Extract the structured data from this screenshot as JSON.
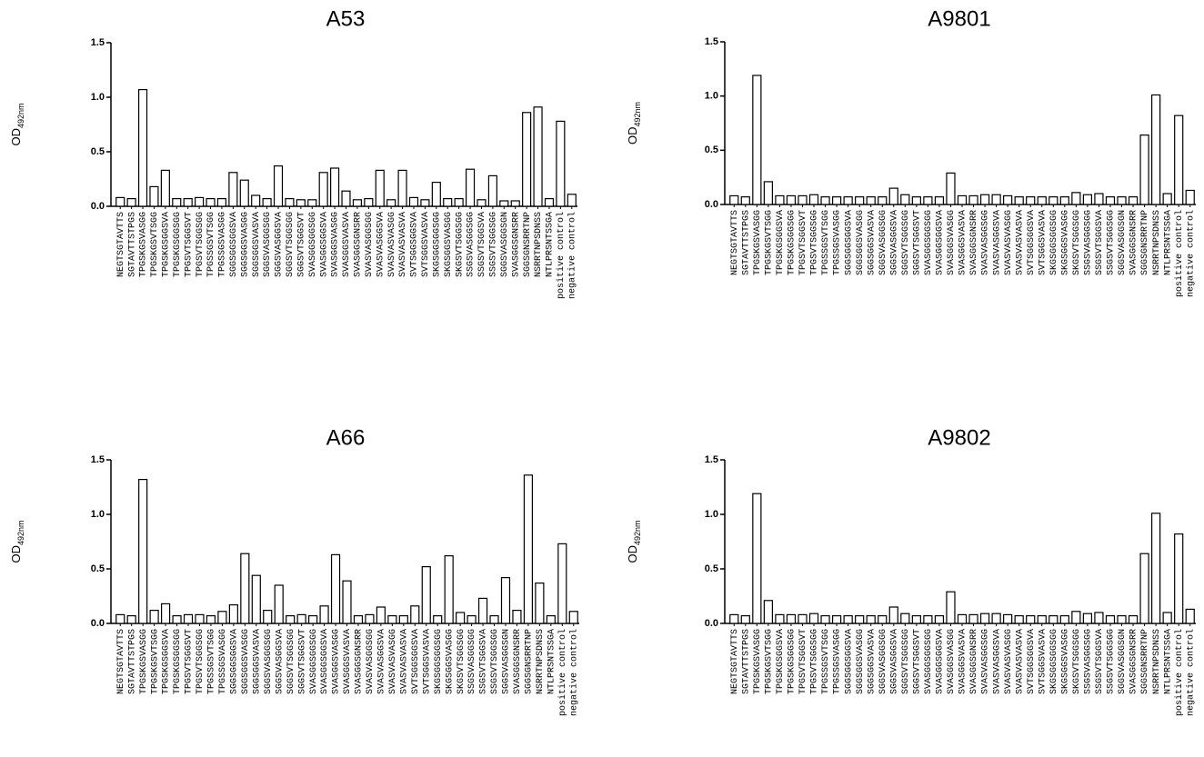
{
  "chart_data": [
    {
      "type": "bar",
      "title": "A53",
      "ylabel": "OD",
      "ylabel_sub": "492nm",
      "categories": [
        "NEGTSGTAVTTS",
        "SGTAVTTSTPGS",
        "TPGSKGSVASGG",
        "TPGSKGSVTSGG",
        "TPGSKGSGGSVA",
        "TPGSKGSGGSGG",
        "TPGSVTSGGSVT",
        "TPGSVTSGGSGG",
        "TPGSSGSVTSGG",
        "TPGSSGSVASGG",
        "SGGSGGSGGSVA",
        "SGGSGGSVASGG",
        "SGGSGGSVASVA",
        "SGGSVASGGSGG",
        "SGGSVASGGSVA",
        "SGGSVTSGGSGG",
        "SGGSVTSGGSVT",
        "SVASGGSGGSGG",
        "SVASGGSGGSVA",
        "SVASGGSVASGG",
        "SVASGGSVASVA",
        "SVASGGSGNSRR",
        "SVASVASGGSGG",
        "SVASVASGGSVA",
        "SVASVASVASGG",
        "SVASVASVASVA",
        "SVTSGGSGGSVA",
        "SVTSGGSVASVA",
        "SKGSGGSGGSGG",
        "SKGSGGSVASGG",
        "SKGSVTSGGSGG",
        "SSGSVASGGSGG",
        "SSGSVTSGGSVA",
        "SSGSVTSGGSGG",
        "SGGSVASGGSGN",
        "SVASGGSGNSRR",
        "SGGSGNSRRTNP",
        "NSRRTNPSDNSS",
        "NTLPRSNTSSGA",
        "positive control",
        "negative control"
      ],
      "values": [
        0.08,
        0.07,
        1.07,
        0.18,
        0.33,
        0.07,
        0.07,
        0.08,
        0.07,
        0.07,
        0.31,
        0.24,
        0.1,
        0.07,
        0.37,
        0.07,
        0.06,
        0.06,
        0.31,
        0.35,
        0.14,
        0.06,
        0.07,
        0.33,
        0.06,
        0.33,
        0.08,
        0.06,
        0.22,
        0.07,
        0.07,
        0.34,
        0.06,
        0.28,
        0.05,
        0.05,
        0.86,
        0.91,
        0.07,
        0.78,
        0.11
      ],
      "ylim": [
        0,
        1.5
      ],
      "yticks": [
        {
          "value": 0,
          "label": "0.0"
        },
        0.5,
        {
          "value": 1,
          "label": "1.0"
        },
        1.5
      ]
    },
    {
      "type": "bar",
      "title": "A9801",
      "ylabel": "OD",
      "ylabel_sub": "492nm",
      "categories": [
        "NEGTSGTAVTTS",
        "SGTAVTTSTPGS",
        "TPGSKGSVASGG",
        "TPGSKGSVTSGG",
        "TPGSKGSGGSVA",
        "TPGSKGSGGSGG",
        "TPGSVTSGGSVT",
        "TPGSVTSGGSGG",
        "TPGSSGSVTSGG",
        "TPGSSGSVASGG",
        "SGGSGGSGGSVA",
        "SGGSGGSVASGG",
        "SGGSGGSVASVA",
        "SGGSVASGGSGG",
        "SGGSVASGGSVA",
        "SGGSVTSGGSGG",
        "SGGSVTSGGSVT",
        "SVASGGSGGSGG",
        "SVASGGSGGSVA",
        "SVASGGSVASGG",
        "SVASGGSVASVA",
        "SVASGGSGNSRR",
        "SVASVASGGSGG",
        "SVASVASGGSVA",
        "SVASVASVASGG",
        "SVASVASVASVA",
        "SVTSGGSGGSVA",
        "SVTSGGSVASVA",
        "SKGSGGSGGSGG",
        "SKGSGGSVASGG",
        "SKGSVTSGGSGG",
        "SSGSVASGGSGG",
        "SSGSVTSGGSVA",
        "SSGSVTSGGSGG",
        "SGGSVASGGSGN",
        "SVASGGSGNSRR",
        "SGGSGNSRRTNP",
        "NSRRTNPSDNSS",
        "NTLPRSNTSSGA",
        "positive control",
        "negative control"
      ],
      "values": [
        0.08,
        0.07,
        1.19,
        0.21,
        0.08,
        0.08,
        0.08,
        0.09,
        0.07,
        0.07,
        0.07,
        0.07,
        0.07,
        0.07,
        0.15,
        0.09,
        0.07,
        0.07,
        0.07,
        0.29,
        0.08,
        0.08,
        0.09,
        0.09,
        0.08,
        0.07,
        0.07,
        0.07,
        0.07,
        0.07,
        0.11,
        0.09,
        0.1,
        0.07,
        0.07,
        0.07,
        0.64,
        1.01,
        0.1,
        0.82,
        0.13
      ],
      "ylim": [
        0,
        1.5
      ],
      "yticks": [
        {
          "value": 0,
          "label": "0.0"
        },
        0.5,
        {
          "value": 1,
          "label": "1.0"
        },
        1.5
      ]
    },
    {
      "type": "bar",
      "title": "A66",
      "ylabel": "OD",
      "ylabel_sub": "492nm",
      "categories": [
        "NEGTSGTAVTTS",
        "SGTAVTTSTPGS",
        "TPGSKGSVASGG",
        "TPGSKGSVTSGG",
        "TPGSKGSGGSVA",
        "TPGSKGSGGSGG",
        "TPGSVTSGGSVT",
        "TPGSVTSGGSGG",
        "TPGSSGSVTSGG",
        "TPGSSGSVASGG",
        "SGGSGGSGGSVA",
        "SGGSGGSVASGG",
        "SGGSGGSVASVA",
        "SGGSVASGGSGG",
        "SGGSVASGGSVA",
        "SGGSVTSGGSGG",
        "SGGSVTSGGSVT",
        "SVASGGSGGSGG",
        "SVASGGSGGSVA",
        "SVASGGSVASGG",
        "SVASGGSVASVA",
        "SVASGGSGNSRR",
        "SVASVASGGSGG",
        "SVASVASGGSVA",
        "SVASVASVASGG",
        "SVASVASVASVA",
        "SVTSGGSGGSVA",
        "SVTSGGSVASVA",
        "SKGSGGSGGSGG",
        "SKGSGGSVASGG",
        "SKGSVTSGGSGG",
        "SSGSVASGGSGG",
        "SSGSVTSGGSVA",
        "SSGSVTSGGSGG",
        "SGGSVASGGSGN",
        "SVASGGSGNSRR",
        "SGGSGNSRRTNP",
        "NSRRTNPSDNSS",
        "NTLPRSNTSSGA",
        "positive control",
        "negative control"
      ],
      "values": [
        0.08,
        0.07,
        1.32,
        0.12,
        0.18,
        0.07,
        0.08,
        0.08,
        0.07,
        0.11,
        0.17,
        0.64,
        0.44,
        0.12,
        0.35,
        0.07,
        0.08,
        0.07,
        0.16,
        0.63,
        0.39,
        0.07,
        0.08,
        0.15,
        0.07,
        0.07,
        0.16,
        0.52,
        0.07,
        0.62,
        0.1,
        0.07,
        0.23,
        0.07,
        0.42,
        0.12,
        1.36,
        0.37,
        0.07,
        0.73,
        0.11
      ],
      "ylim": [
        0,
        1.5
      ],
      "yticks": [
        {
          "value": 0,
          "label": "0.0"
        },
        0.5,
        {
          "value": 1,
          "label": "1.0"
        },
        1.5
      ]
    },
    {
      "type": "bar",
      "title": "A9802",
      "ylabel": "OD",
      "ylabel_sub": "492nm",
      "categories": [
        "NEGTSGTAVTTS",
        "SGTAVTTSTPGS",
        "TPGSKGSVASGG",
        "TPGSKGSVTSGG",
        "TPGSKGSGGSVA",
        "TPGSKGSGGSGG",
        "TPGSVTSGGSVT",
        "TPGSVTSGGSGG",
        "TPGSSGSVTSGG",
        "TPGSSGSVASGG",
        "SGGSGGSGGSVA",
        "SGGSGGSVASGG",
        "SGGSGGSVASVA",
        "SGGSVASGGSGG",
        "SGGSVASGGSVA",
        "SGGSVTSGGSGG",
        "SGGSVTSGGSVT",
        "SVASGGSGGSGG",
        "SVASGGSGGSVA",
        "SVASGGSVASGG",
        "SVASGGSVASVA",
        "SVASGGSGNSRR",
        "SVASVASGGSGG",
        "SVASVASGGSVA",
        "SVASVASVASGG",
        "SVASVASVASVA",
        "SVTSGGSGGSVA",
        "SVTSGGSVASVA",
        "SKGSGGSGGSGG",
        "SKGSGGSVASGG",
        "SKGSVTSGGSGG",
        "SSGSVASGGSGG",
        "SSGSVTSGGSVA",
        "SSGSVTSGGSGG",
        "SGGSVASGGSGN",
        "SVASGGSGNSRR",
        "SGGSGNSRRTNP",
        "NSRRTNPSDNSS",
        "NTLPRSNTSSGA",
        "positive control",
        "negative control"
      ],
      "values": [
        0.08,
        0.07,
        1.19,
        0.21,
        0.08,
        0.08,
        0.08,
        0.09,
        0.07,
        0.07,
        0.07,
        0.07,
        0.07,
        0.07,
        0.15,
        0.09,
        0.07,
        0.07,
        0.07,
        0.29,
        0.08,
        0.08,
        0.09,
        0.09,
        0.08,
        0.07,
        0.07,
        0.07,
        0.07,
        0.07,
        0.11,
        0.09,
        0.1,
        0.07,
        0.07,
        0.07,
        0.64,
        1.01,
        0.1,
        0.82,
        0.13
      ],
      "ylim": [
        0,
        1.5
      ],
      "yticks": [
        {
          "value": 0,
          "label": "0.0"
        },
        0.5,
        {
          "value": 1,
          "label": "1.0"
        },
        1.5
      ]
    }
  ]
}
